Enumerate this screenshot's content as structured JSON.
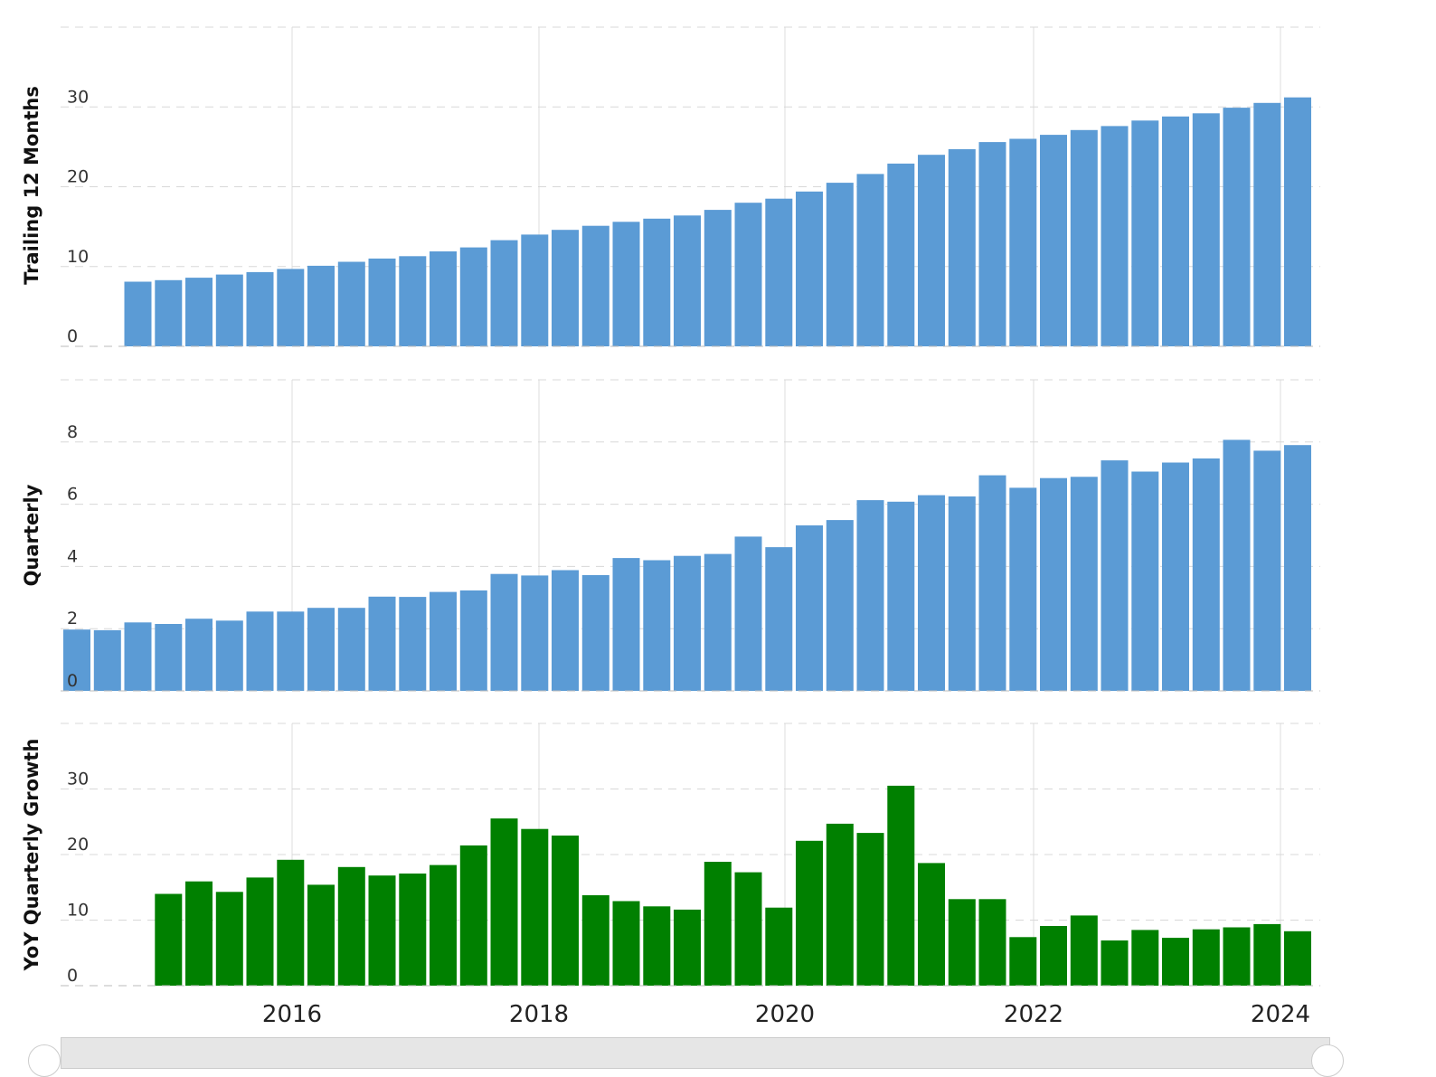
{
  "colors": {
    "bar_blue": "#5b9bd5",
    "bar_green": "#008000",
    "grid": "#d8d8d8"
  },
  "x_axis": {
    "ticks": [
      "2016",
      "2018",
      "2020",
      "2022",
      "2024"
    ]
  },
  "chart_data": [
    {
      "type": "bar",
      "ylabel": "Trailing 12 Months",
      "ylim": [
        0,
        40
      ],
      "yticks": [
        0,
        10,
        20,
        30
      ],
      "grid": true,
      "x": [
        "2014-06",
        "2014-09",
        "2014-12",
        "2015-03",
        "2015-06",
        "2015-09",
        "2015-12",
        "2016-03",
        "2016-06",
        "2016-09",
        "2016-12",
        "2017-03",
        "2017-06",
        "2017-09",
        "2017-12",
        "2018-03",
        "2018-06",
        "2018-09",
        "2018-12",
        "2019-03",
        "2019-06",
        "2019-09",
        "2019-12",
        "2020-03",
        "2020-06",
        "2020-09",
        "2020-12",
        "2021-03",
        "2021-06",
        "2021-09",
        "2021-12",
        "2022-03",
        "2022-06",
        "2022-09",
        "2022-12",
        "2023-03",
        "2023-06",
        "2023-09",
        "2023-12",
        "2024-03",
        "2024-06"
      ],
      "values": [
        null,
        null,
        8.1,
        8.3,
        8.6,
        9.0,
        9.3,
        9.7,
        10.1,
        10.6,
        11.0,
        11.3,
        11.9,
        12.4,
        13.3,
        14.0,
        14.6,
        15.1,
        15.6,
        16.0,
        16.4,
        17.1,
        18.0,
        18.5,
        19.4,
        20.5,
        21.6,
        22.9,
        24.0,
        24.7,
        25.6,
        26.0,
        26.5,
        27.1,
        27.6,
        28.3,
        28.8,
        29.2,
        29.9,
        30.5,
        31.2
      ]
    },
    {
      "type": "bar",
      "ylabel": "Quarterly",
      "ylim": [
        0,
        10
      ],
      "yticks": [
        0,
        2,
        4,
        6,
        8
      ],
      "grid": true,
      "x": [
        "2014-06",
        "2014-09",
        "2014-12",
        "2015-03",
        "2015-06",
        "2015-09",
        "2015-12",
        "2016-03",
        "2016-06",
        "2016-09",
        "2016-12",
        "2017-03",
        "2017-06",
        "2017-09",
        "2017-12",
        "2018-03",
        "2018-06",
        "2018-09",
        "2018-12",
        "2019-03",
        "2019-06",
        "2019-09",
        "2019-12",
        "2020-03",
        "2020-06",
        "2020-09",
        "2020-12",
        "2021-03",
        "2021-06",
        "2021-09",
        "2021-12",
        "2022-03",
        "2022-06",
        "2022-09",
        "2022-12",
        "2023-03",
        "2023-06",
        "2023-09",
        "2023-12",
        "2024-03",
        "2024-06"
      ],
      "values": [
        1.97,
        1.95,
        2.2,
        2.15,
        2.32,
        2.26,
        2.55,
        2.55,
        2.67,
        2.67,
        3.03,
        3.02,
        3.18,
        3.23,
        3.76,
        3.71,
        3.88,
        3.72,
        4.27,
        4.2,
        4.34,
        4.4,
        4.96,
        4.62,
        5.32,
        5.49,
        6.13,
        6.08,
        6.29,
        6.25,
        6.93,
        6.53,
        6.84,
        6.88,
        7.41,
        7.05,
        7.34,
        7.47,
        8.07,
        7.72,
        7.9
      ]
    },
    {
      "type": "bar",
      "ylabel": "YoY Quarterly Growth",
      "ylim": [
        0,
        40
      ],
      "yticks": [
        0,
        10,
        20,
        30
      ],
      "grid": true,
      "x": [
        "2014-06",
        "2014-09",
        "2014-12",
        "2015-03",
        "2015-06",
        "2015-09",
        "2015-12",
        "2016-03",
        "2016-06",
        "2016-09",
        "2016-12",
        "2017-03",
        "2017-06",
        "2017-09",
        "2017-12",
        "2018-03",
        "2018-06",
        "2018-09",
        "2018-12",
        "2019-03",
        "2019-06",
        "2019-09",
        "2019-12",
        "2020-03",
        "2020-06",
        "2020-09",
        "2020-12",
        "2021-03",
        "2021-06",
        "2021-09",
        "2021-12",
        "2022-03",
        "2022-06",
        "2022-09",
        "2022-12",
        "2023-03",
        "2023-06",
        "2023-09",
        "2023-12",
        "2024-03",
        "2024-06"
      ],
      "values": [
        null,
        null,
        null,
        14.0,
        15.9,
        14.3,
        16.5,
        19.2,
        15.4,
        18.1,
        16.8,
        17.1,
        18.4,
        21.4,
        25.5,
        23.9,
        22.9,
        13.8,
        12.9,
        12.1,
        11.6,
        18.9,
        17.3,
        11.9,
        22.1,
        24.7,
        23.3,
        30.5,
        18.7,
        13.2,
        13.2,
        7.4,
        9.1,
        10.7,
        6.9,
        8.5,
        7.3,
        8.6,
        8.9,
        9.4,
        8.3
      ]
    }
  ]
}
